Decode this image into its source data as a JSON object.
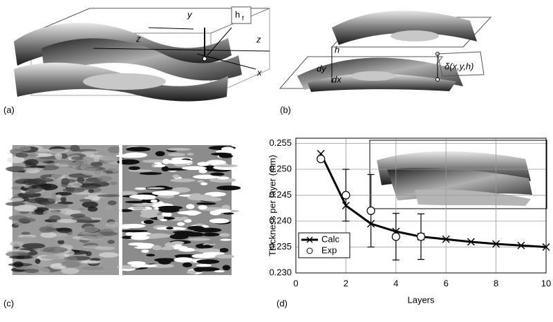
{
  "panel_labels": [
    "(a)",
    "(b)",
    "(c)",
    "(d)"
  ],
  "diagram_a": {
    "y": "y",
    "z_top": "z",
    "z_side": "z",
    "x": "x",
    "hf": "h",
    "hf_sub": "f"
  },
  "diagram_b": {
    "h": "h",
    "dy": "dy",
    "dx": "dx",
    "delta": "δ(x,y,h)"
  },
  "chart_data": {
    "type": "line",
    "x_label": "Layers",
    "y_label": "Thickness per layer (mm)",
    "xlim": [
      0,
      10
    ],
    "xticks": [
      0,
      2,
      4,
      6,
      8,
      10
    ],
    "ylim": [
      0.23,
      0.256
    ],
    "yticks": [
      {
        "value": 0.23,
        "label": "0.230"
      },
      0.235,
      {
        "value": 0.24,
        "label": "0.240"
      },
      0.245,
      {
        "value": 0.25,
        "label": "0.250"
      },
      0.255
    ],
    "grid": true,
    "legend": "lower-left",
    "series": [
      {
        "name": "Calc",
        "color": "#000000",
        "x": [
          1,
          2,
          3,
          4,
          5,
          6,
          7,
          8,
          9,
          10
        ],
        "values": [
          0.253,
          0.243,
          0.2395,
          0.238,
          0.237,
          0.2365,
          0.236,
          0.2356,
          0.2353,
          0.235
        ]
      },
      {
        "name": "Exp",
        "color": "#000000",
        "x": [
          1,
          2,
          3,
          4,
          5
        ],
        "values": [
          0.252,
          0.245,
          0.242,
          0.237,
          0.237
        ],
        "errors": [
          null,
          0.005,
          0.007,
          0.0045,
          0.0044
        ]
      }
    ]
  }
}
